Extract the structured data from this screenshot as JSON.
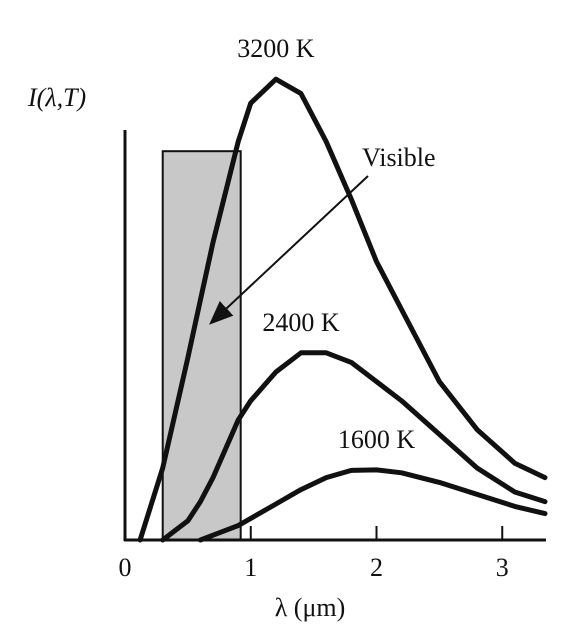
{
  "chart_data": {
    "type": "line",
    "ylabel": "I(λ,T)",
    "xlabel": "λ (μm)",
    "xlim": [
      0,
      3.34
    ],
    "ylim": [
      0,
      100
    ],
    "xticks": [
      0,
      1,
      2,
      3
    ],
    "x": [
      0.12,
      0.3,
      0.5,
      0.6,
      0.7,
      0.9,
      1.0,
      1.2,
      1.4,
      1.6,
      1.8,
      2.0,
      2.2,
      2.5,
      2.8,
      3.1,
      3.34
    ],
    "series": [
      {
        "name": "3200 K",
        "color": "#111111",
        "values": [
          0,
          15,
          38,
          50,
          62,
          83,
          91,
          96,
          93,
          83,
          71,
          58,
          48,
          33,
          23,
          16,
          13
        ]
      },
      {
        "name": "2400 K",
        "color": "#111111",
        "values": [
          null,
          0,
          4,
          8,
          13,
          25,
          29,
          35,
          39,
          39,
          37,
          33,
          29,
          22,
          15,
          10,
          8
        ]
      },
      {
        "name": "1600 K",
        "color": "#111111",
        "values": [
          null,
          null,
          null,
          0,
          1,
          3,
          4.5,
          7.5,
          10.5,
          13,
          14.5,
          14.6,
          14,
          12,
          9.5,
          7,
          5.5
        ]
      }
    ],
    "visible_band": {
      "label": "Visible",
      "range": [
        0.3,
        0.92
      ],
      "top": 81,
      "color": "#c8c8c8"
    }
  }
}
